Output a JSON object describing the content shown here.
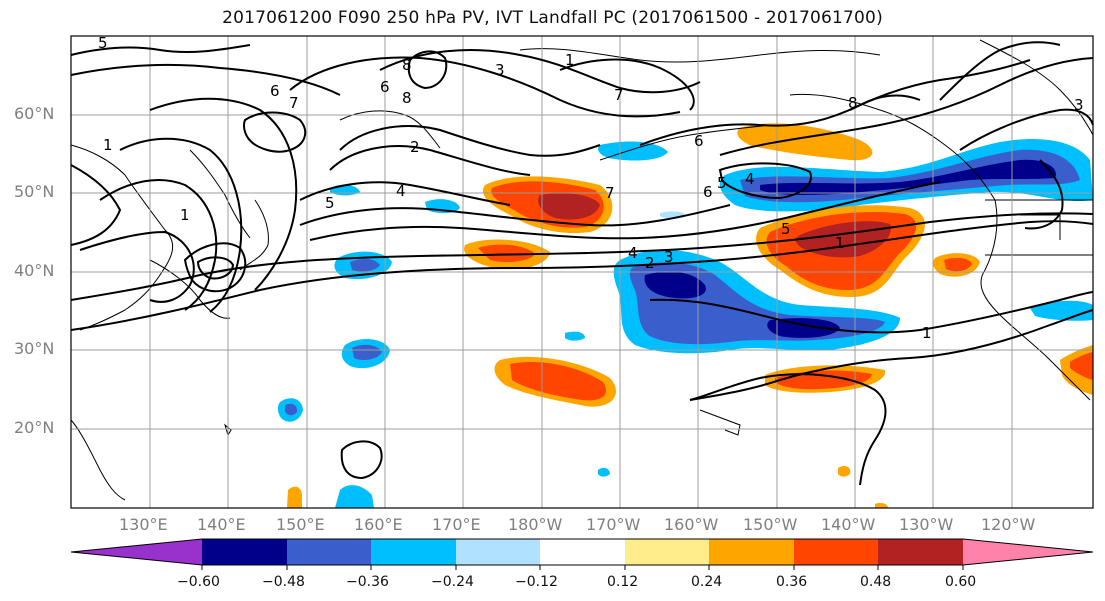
{
  "title": "2017061200 F090 250 hPa PV, IVT Landfall PC (2017061500 - 2017061700)",
  "map": {
    "lon_labels": [
      "130°E",
      "140°E",
      "150°E",
      "160°E",
      "170°E",
      "180°W",
      "170°W",
      "160°W",
      "150°W",
      "140°W",
      "130°W",
      "120°W"
    ],
    "lat_labels": [
      "60°N",
      "50°N",
      "40°N",
      "30°N",
      "20°N"
    ],
    "contour_labels": [
      "5",
      "6",
      "7",
      "8",
      "2",
      "1",
      "5",
      "4",
      "1",
      "6",
      "7",
      "8",
      "6",
      "3",
      "1",
      "4",
      "2",
      "3",
      "6",
      "5",
      "4",
      "7",
      "8",
      "1",
      "3",
      "5",
      "1"
    ]
  },
  "colorbar": {
    "tick_labels": [
      "−0.60",
      "−0.48",
      "−0.36",
      "−0.24",
      "−0.12",
      "0.12",
      "0.24",
      "0.36",
      "0.48",
      "0.60"
    ],
    "colors": [
      "#9932CC",
      "#00008B",
      "#3A5FCD",
      "#00BFFF",
      "#B0E2FF",
      "#FFFFFF",
      "#FFEC8B",
      "#FFA500",
      "#FF4500",
      "#B22222",
      "#FF82AB"
    ]
  }
}
